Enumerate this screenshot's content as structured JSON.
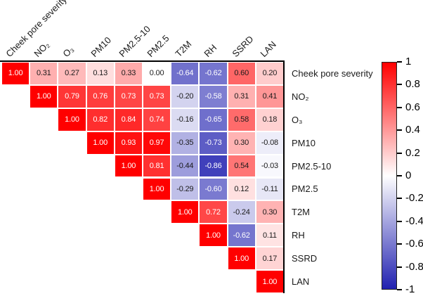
{
  "chart_data": {
    "type": "heatmap",
    "title": "",
    "subtitle": "",
    "variables": [
      "Cheek pore severity",
      "NO₂",
      "O₃",
      "PM10",
      "PM2.5-10",
      "PM2.5",
      "T2M",
      "RH",
      "SSRD",
      "LAN"
    ],
    "matrix": [
      [
        1.0,
        0.31,
        0.27,
        0.13,
        0.33,
        0.0,
        -0.64,
        -0.62,
        0.6,
        0.2
      ],
      [
        null,
        1.0,
        0.79,
        0.76,
        0.73,
        0.73,
        -0.2,
        -0.58,
        0.31,
        0.41
      ],
      [
        null,
        null,
        1.0,
        0.82,
        0.84,
        0.74,
        -0.16,
        -0.65,
        0.58,
        0.18
      ],
      [
        null,
        null,
        null,
        1.0,
        0.93,
        0.97,
        -0.35,
        -0.73,
        0.3,
        -0.08
      ],
      [
        null,
        null,
        null,
        null,
        1.0,
        0.81,
        -0.44,
        -0.86,
        0.54,
        -0.03
      ],
      [
        null,
        null,
        null,
        null,
        null,
        1.0,
        -0.29,
        -0.6,
        0.12,
        -0.11
      ],
      [
        null,
        null,
        null,
        null,
        null,
        null,
        1.0,
        0.72,
        -0.24,
        0.3
      ],
      [
        null,
        null,
        null,
        null,
        null,
        null,
        null,
        1.0,
        -0.62,
        0.11
      ],
      [
        null,
        null,
        null,
        null,
        null,
        null,
        null,
        null,
        1.0,
        0.17
      ],
      [
        null,
        null,
        null,
        null,
        null,
        null,
        null,
        null,
        null,
        1.0
      ]
    ],
    "triangle": "upper",
    "value_decimals": 2,
    "colormap": {
      "domain": [
        -1,
        1
      ],
      "min_color": "#2121B0",
      "mid_color": "#FFFFFF",
      "max_color": "#FF0000",
      "cell_text_light": "#FFFFFF",
      "cell_text_dark": "#1A1A1A"
    },
    "colorbar": {
      "position": "right",
      "tick_labels": [
        "1",
        "0.8",
        "0.6",
        "0.4",
        "0.2",
        "0",
        "-0.2",
        "-0.4",
        "-0.6",
        "-0.8",
        "-1"
      ]
    },
    "layout_hints": {
      "grid": false,
      "gap_color": "#FFFFFF",
      "frame_sides": "top-right"
    }
  }
}
